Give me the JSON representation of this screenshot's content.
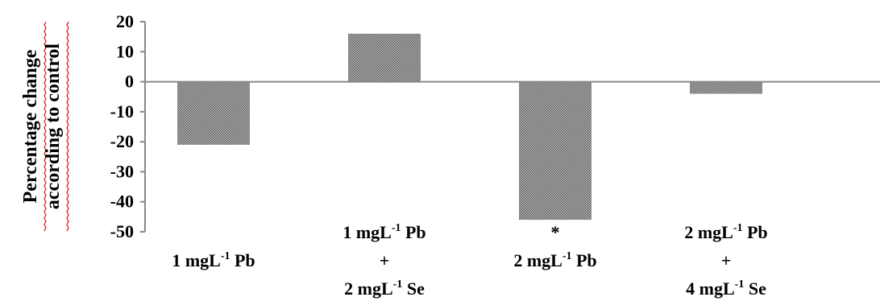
{
  "chart_data": {
    "type": "bar",
    "ylabel_lines": [
      "Percentage change",
      "according to control"
    ],
    "ylim": [
      -50,
      20
    ],
    "yticks": [
      20,
      10,
      0,
      -10,
      -20,
      -30,
      -40,
      -50
    ],
    "categories": [
      {
        "lines": [
          {
            "pre": "1 mgL",
            "sup": "-1",
            "post": " Pb"
          }
        ]
      },
      {
        "lines": [
          {
            "pre": "1 mgL",
            "sup": "-1",
            "post": " Pb"
          },
          {
            "pre": "+",
            "sup": "",
            "post": ""
          },
          {
            "pre": "2 mgL",
            "sup": "-1",
            "post": " Se"
          }
        ]
      },
      {
        "lines": [
          {
            "pre": "2 mgL",
            "sup": "-1",
            "post": " Pb"
          }
        ]
      },
      {
        "lines": [
          {
            "pre": "2 mgL",
            "sup": "-1",
            "post": " Pb"
          },
          {
            "pre": "+",
            "sup": "",
            "post": ""
          },
          {
            "pre": "4 mgL",
            "sup": "-1",
            "post": " Se"
          }
        ]
      }
    ],
    "values": [
      -21,
      16,
      -46,
      -4
    ],
    "annotations": [
      "",
      "",
      "*",
      ""
    ],
    "bar_color": "#8c8c8c",
    "axis_color": "#888888",
    "grid": false
  }
}
